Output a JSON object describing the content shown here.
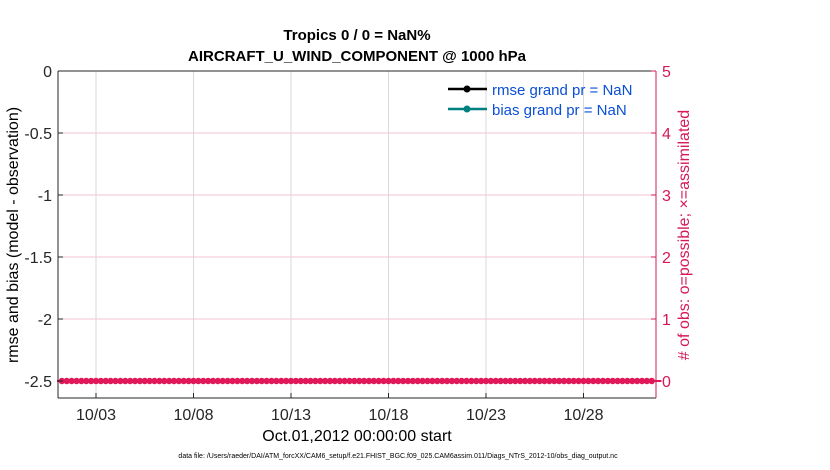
{
  "chart_data": {
    "type": "line",
    "title_line1": "Tropics 0 / 0 = NaN%",
    "title_line2": "AIRCRAFT_U_WIND_COMPONENT @ 1000 hPa",
    "xlabel": "Oct.01,2012 00:00:00 start",
    "ylabel_left": "rmse and bias (model - observation)",
    "ylabel_right": "# of obs: o=possible; ×=assimilated",
    "x_range_days": [
      1,
      32
    ],
    "x_ticks": [
      {
        "day": 3,
        "label": "10/03"
      },
      {
        "day": 8,
        "label": "10/08"
      },
      {
        "day": 13,
        "label": "10/13"
      },
      {
        "day": 18,
        "label": "10/18"
      },
      {
        "day": 23,
        "label": "10/23"
      },
      {
        "day": 28,
        "label": "10/28"
      }
    ],
    "y_left_range": [
      -2.5,
      0
    ],
    "y_left_ticks": [
      {
        "value": 0,
        "label": "0"
      },
      {
        "value": -0.5,
        "label": "-0.5"
      },
      {
        "value": -1,
        "label": "-1"
      },
      {
        "value": -1.5,
        "label": "-1.5"
      },
      {
        "value": -2,
        "label": "-2"
      },
      {
        "value": -2.5,
        "label": "-2.5"
      }
    ],
    "y_right_range": [
      0,
      5
    ],
    "y_right_ticks": [
      {
        "value": 0,
        "label": "0"
      },
      {
        "value": 1,
        "label": "1"
      },
      {
        "value": 2,
        "label": "2"
      },
      {
        "value": 3,
        "label": "3"
      },
      {
        "value": 4,
        "label": "4"
      },
      {
        "value": 5,
        "label": "5"
      }
    ],
    "grid": true,
    "legend_position": "top-right",
    "series": [
      {
        "name": "rmse grand pr = NaN",
        "color": "#000000",
        "values": []
      },
      {
        "name": "bias grand pr = NaN",
        "color": "#008080",
        "values": []
      }
    ],
    "obs_count": {
      "color": "#e0185a",
      "value": 0,
      "x_start_day": 1,
      "x_end_day": 32,
      "step_days": 0.25
    }
  },
  "footer": "data file: /Users/raeder/DAI/ATM_forcXX/CAM6_setup/f.e21.FHIST_BGC.f09_025.CAM6assim.011/Diags_NTrS_2012-10/obs_diag_output.nc"
}
